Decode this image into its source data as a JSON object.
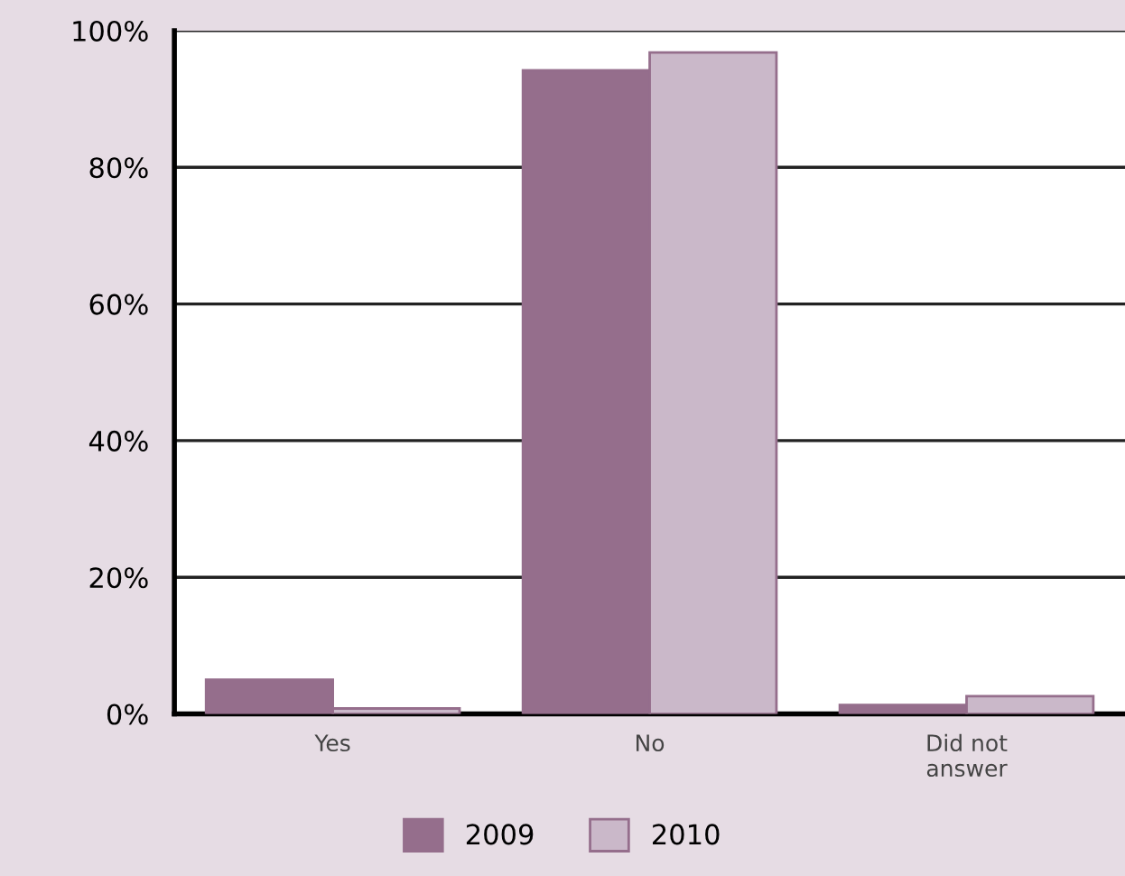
{
  "chart_data": {
    "type": "bar",
    "categories": [
      "Yes",
      "No",
      "Did not\nanswer"
    ],
    "series": [
      {
        "name": "2009",
        "color": "#956e8c",
        "values": [
          5.0,
          94.2,
          1.3
        ]
      },
      {
        "name": "2010",
        "color": "#cab8c9",
        "values": [
          0.8,
          96.8,
          2.6
        ]
      }
    ],
    "ylim": [
      0,
      100
    ],
    "yticks": [
      {
        "value": 0,
        "label": "0%"
      },
      {
        "value": 20,
        "label": "20%"
      },
      {
        "value": 40,
        "label": "40%"
      },
      {
        "value": 60,
        "label": "60%"
      },
      {
        "value": 80,
        "label": "80%"
      },
      {
        "value": 100,
        "label": "100%"
      }
    ],
    "grid": "y",
    "legend": "bottom"
  }
}
